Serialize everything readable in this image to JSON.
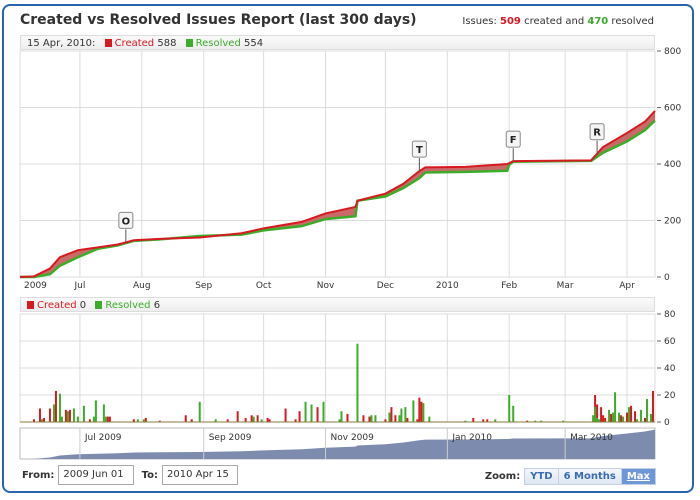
{
  "title": "Created vs Resolved Issues Report (last 300 days)",
  "summary": {
    "prefix": "Issues:",
    "created": "509",
    "mid": "created and",
    "resolved": "470",
    "suffix": "resolved"
  },
  "main_legend": {
    "date": "15 Apr, 2010:",
    "created_label": "Created",
    "created_value": "588",
    "resolved_label": "Resolved",
    "resolved_value": "554"
  },
  "daily_legend": {
    "created_label": "Created",
    "created_value": "0",
    "resolved_label": "Resolved",
    "resolved_value": "6"
  },
  "colors": {
    "created": "#d71920",
    "resolved": "#3cac2b",
    "navigator": "#7d8cae"
  },
  "chart_data": [
    {
      "type": "area",
      "ylim": [
        0,
        800
      ],
      "yticks": [
        0,
        200,
        400,
        600,
        800
      ],
      "xlim": [
        "2009-06-01",
        "2010-04-15"
      ],
      "xticks": [
        {
          "date": "2009-06-01",
          "label": "2009"
        },
        {
          "date": "2009-07-01",
          "label": "Jul"
        },
        {
          "date": "2009-08-01",
          "label": "Aug"
        },
        {
          "date": "2009-09-01",
          "label": "Sep"
        },
        {
          "date": "2009-10-01",
          "label": "Oct"
        },
        {
          "date": "2009-11-01",
          "label": "Nov"
        },
        {
          "date": "2009-12-01",
          "label": "Dec"
        },
        {
          "date": "2010-01-01",
          "label": "2010"
        },
        {
          "date": "2010-02-01",
          "label": "Feb"
        },
        {
          "date": "2010-03-01",
          "label": "Mar"
        },
        {
          "date": "2010-04-01",
          "label": "Apr"
        }
      ],
      "series": [
        {
          "name": "Created",
          "color": "#d71920"
        },
        {
          "name": "Resolved",
          "color": "#3cac2b"
        }
      ],
      "points": [
        [
          "2009-06-01",
          0,
          0
        ],
        [
          "2009-06-08",
          2,
          0
        ],
        [
          "2009-06-16",
          30,
          10
        ],
        [
          "2009-06-21",
          70,
          40
        ],
        [
          "2009-06-30",
          95,
          70
        ],
        [
          "2009-07-10",
          105,
          100
        ],
        [
          "2009-07-20",
          115,
          112
        ],
        [
          "2009-07-28",
          130,
          128
        ],
        [
          "2009-08-10",
          135,
          133
        ],
        [
          "2009-08-30",
          140,
          145
        ],
        [
          "2009-09-20",
          155,
          150
        ],
        [
          "2009-10-01",
          172,
          165
        ],
        [
          "2009-10-20",
          195,
          180
        ],
        [
          "2009-11-01",
          225,
          205
        ],
        [
          "2009-11-16",
          248,
          215
        ],
        [
          "2009-11-17",
          270,
          270
        ],
        [
          "2009-12-01",
          295,
          285
        ],
        [
          "2009-12-10",
          330,
          315
        ],
        [
          "2009-12-18",
          375,
          350
        ],
        [
          "2009-12-21",
          388,
          370
        ],
        [
          "2010-01-10",
          390,
          372
        ],
        [
          "2010-01-31",
          400,
          376
        ],
        [
          "2010-02-01",
          403,
          398
        ],
        [
          "2010-02-03",
          410,
          408
        ],
        [
          "2010-03-01",
          412,
          410
        ],
        [
          "2010-03-14",
          413,
          411
        ],
        [
          "2010-03-20",
          460,
          440
        ],
        [
          "2010-04-01",
          510,
          480
        ],
        [
          "2010-04-10",
          550,
          520
        ],
        [
          "2010-04-15",
          588,
          554
        ]
      ],
      "flags": [
        {
          "date": "2009-07-24",
          "label": "O"
        },
        {
          "date": "2009-12-18",
          "label": "T"
        },
        {
          "date": "2010-02-03",
          "label": "F"
        },
        {
          "date": "2010-03-17",
          "label": "R"
        }
      ]
    },
    {
      "type": "bar",
      "ylim": [
        0,
        80
      ],
      "yticks": [
        0,
        20,
        40,
        60,
        80
      ],
      "series": [
        {
          "name": "Created",
          "color": "#d71920"
        },
        {
          "name": "Resolved",
          "color": "#3cac2b"
        }
      ],
      "bars": [
        [
          "2009-06-08",
          2,
          0
        ],
        [
          "2009-06-11",
          10,
          0
        ],
        [
          "2009-06-12",
          0,
          2
        ],
        [
          "2009-06-13",
          3,
          0
        ],
        [
          "2009-06-16",
          10,
          0
        ],
        [
          "2009-06-18",
          23,
          13
        ],
        [
          "2009-06-21",
          0,
          21
        ],
        [
          "2009-06-22",
          0,
          4
        ],
        [
          "2009-06-24",
          9,
          0
        ],
        [
          "2009-06-25",
          9,
          8
        ],
        [
          "2009-06-28",
          0,
          10
        ],
        [
          "2009-06-30",
          0,
          4
        ],
        [
          "2009-07-03",
          0,
          12
        ],
        [
          "2009-07-06",
          2,
          0
        ],
        [
          "2009-07-08",
          0,
          4
        ],
        [
          "2009-07-09",
          0,
          16
        ],
        [
          "2009-07-13",
          0,
          13
        ],
        [
          "2009-07-14",
          4,
          4
        ],
        [
          "2009-07-16",
          4,
          0
        ],
        [
          "2009-07-28",
          2,
          0
        ],
        [
          "2009-07-30",
          0,
          2
        ],
        [
          "2009-08-02",
          0,
          2
        ],
        [
          "2009-08-03",
          3,
          0
        ],
        [
          "2009-08-10",
          1,
          0
        ],
        [
          "2009-08-23",
          5,
          0
        ],
        [
          "2009-08-26",
          2,
          0
        ],
        [
          "2009-08-30",
          0,
          15
        ],
        [
          "2009-09-07",
          0,
          2
        ],
        [
          "2009-09-13",
          2,
          0
        ],
        [
          "2009-09-18",
          8,
          0
        ],
        [
          "2009-09-22",
          3,
          0
        ],
        [
          "2009-09-25",
          5,
          0
        ],
        [
          "2009-09-26",
          0,
          4
        ],
        [
          "2009-09-28",
          5,
          0
        ],
        [
          "2009-09-30",
          0,
          2
        ],
        [
          "2009-10-03",
          3,
          0
        ],
        [
          "2009-10-04",
          2,
          0
        ],
        [
          "2009-10-12",
          10,
          0
        ],
        [
          "2009-10-17",
          2,
          0
        ],
        [
          "2009-10-19",
          8,
          0
        ],
        [
          "2009-10-22",
          0,
          15
        ],
        [
          "2009-10-25",
          0,
          13
        ],
        [
          "2009-10-28",
          11,
          0
        ],
        [
          "2009-10-31",
          0,
          15
        ],
        [
          "2009-11-08",
          0,
          2
        ],
        [
          "2009-11-09",
          0,
          8
        ],
        [
          "2009-11-12",
          6,
          0
        ],
        [
          "2009-11-17",
          0,
          58
        ],
        [
          "2009-11-20",
          5,
          0
        ],
        [
          "2009-11-23",
          4,
          0
        ],
        [
          "2009-11-24",
          0,
          5
        ],
        [
          "2009-11-26",
          0,
          5
        ],
        [
          "2009-12-01",
          2,
          0
        ],
        [
          "2009-12-03",
          11,
          7
        ],
        [
          "2009-12-06",
          5,
          0
        ],
        [
          "2009-12-08",
          0,
          5
        ],
        [
          "2009-12-09",
          0,
          10
        ],
        [
          "2009-12-11",
          0,
          11
        ],
        [
          "2009-12-12",
          3,
          0
        ],
        [
          "2009-12-15",
          0,
          16
        ],
        [
          "2009-12-17",
          2,
          0
        ],
        [
          "2009-12-18",
          18,
          0
        ],
        [
          "2009-12-19",
          15,
          0
        ],
        [
          "2009-12-20",
          0,
          14
        ],
        [
          "2009-12-23",
          0,
          4
        ],
        [
          "2010-01-10",
          0,
          1
        ],
        [
          "2010-01-14",
          3,
          0
        ],
        [
          "2010-01-19",
          2,
          0
        ],
        [
          "2010-01-21",
          2,
          0
        ],
        [
          "2010-01-25",
          0,
          2
        ],
        [
          "2010-02-01",
          0,
          20
        ],
        [
          "2010-02-03",
          0,
          12
        ],
        [
          "2010-02-10",
          1,
          0
        ],
        [
          "2010-02-14",
          0,
          1
        ],
        [
          "2010-02-17",
          0,
          1
        ],
        [
          "2010-02-28",
          0,
          1
        ],
        [
          "2010-03-15",
          20,
          5
        ],
        [
          "2010-03-16",
          13,
          11
        ],
        [
          "2010-03-17",
          0,
          3
        ],
        [
          "2010-03-18",
          0,
          2
        ],
        [
          "2010-03-19",
          11,
          0
        ],
        [
          "2010-03-20",
          5,
          0
        ],
        [
          "2010-03-21",
          3,
          0
        ],
        [
          "2010-03-23",
          0,
          9
        ],
        [
          "2010-03-24",
          6,
          0
        ],
        [
          "2010-03-25",
          0,
          7
        ],
        [
          "2010-03-26",
          0,
          22
        ],
        [
          "2010-03-28",
          0,
          7
        ],
        [
          "2010-03-29",
          5,
          0
        ],
        [
          "2010-03-30",
          0,
          4
        ],
        [
          "2010-04-01",
          7,
          0
        ],
        [
          "2010-04-02",
          12,
          11
        ],
        [
          "2010-04-05",
          8,
          0
        ],
        [
          "2010-04-06",
          0,
          2
        ],
        [
          "2010-04-08",
          0,
          9
        ],
        [
          "2010-04-10",
          3,
          0
        ],
        [
          "2010-04-11",
          0,
          17
        ],
        [
          "2010-04-13",
          23,
          6
        ]
      ]
    },
    {
      "type": "area",
      "role": "navigator",
      "xticks": [
        {
          "date": "2009-07-01",
          "label": "Jul 2009"
        },
        {
          "date": "2009-09-01",
          "label": "Sep 2009"
        },
        {
          "date": "2009-11-01",
          "label": "Nov 2009"
        },
        {
          "date": "2010-01-01",
          "label": "Jan 2010"
        },
        {
          "date": "2010-03-01",
          "label": "Mar 2010"
        }
      ]
    }
  ],
  "range": {
    "from_label": "From:",
    "from_value": "2009 Jun 01",
    "to_label": "To:",
    "to_value": "2010 Apr 15"
  },
  "zoom": {
    "label": "Zoom:",
    "buttons": [
      "YTD",
      "6 Months",
      "Max"
    ],
    "selected": "Max"
  }
}
